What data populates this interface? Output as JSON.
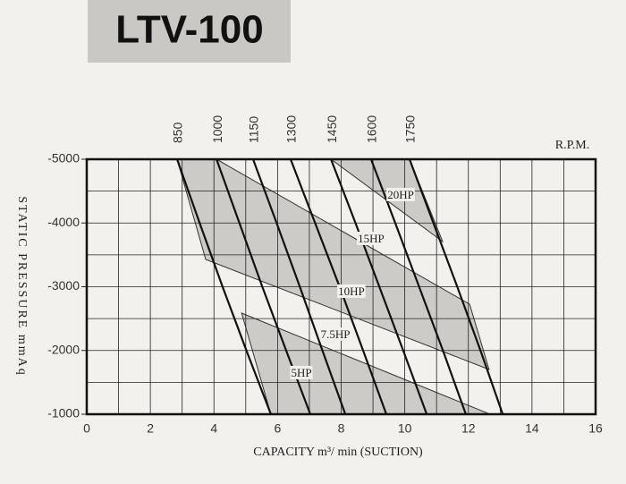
{
  "chart_data": {
    "type": "performance",
    "title": "LTV-100",
    "xlabel": "CAPACITY m³/ min (SUCTION)",
    "ylabel": "STATIC PRESSURE mmAq",
    "series_label": "R.P.M.",
    "xlim": [
      0,
      16
    ],
    "xticks": [
      0,
      2,
      4,
      6,
      8,
      10,
      12,
      14,
      16
    ],
    "ylim": [
      -1000,
      -5000
    ],
    "yticks": [
      -5000,
      -4000,
      -3000,
      -2000,
      -1000
    ],
    "grid": true,
    "minor_grid": true,
    "pressure": [
      -5000,
      -4000,
      -3000,
      -2000,
      -1000
    ],
    "series": [
      {
        "name": "850",
        "color": "#111111",
        "values": [
          2.84,
          3.55,
          4.27,
          5.02,
          5.79
        ]
      },
      {
        "name": "1000",
        "color": "#111111",
        "values": [
          4.08,
          4.8,
          5.52,
          6.27,
          7.03
        ]
      },
      {
        "name": "1150",
        "color": "#111111",
        "values": [
          5.23,
          5.97,
          6.7,
          7.41,
          8.13
        ]
      },
      {
        "name": "1300",
        "color": "#111111",
        "values": [
          6.41,
          7.18,
          7.95,
          8.69,
          9.42
        ]
      },
      {
        "name": "1450",
        "color": "#111111",
        "values": [
          7.68,
          8.45,
          9.2,
          9.95,
          10.69
        ]
      },
      {
        "name": "1600",
        "color": "#111111",
        "values": [
          8.94,
          9.7,
          10.45,
          11.2,
          11.92
        ]
      },
      {
        "name": "1750",
        "color": "#111111",
        "values": [
          10.15,
          10.9,
          11.65,
          12.38,
          13.08
        ]
      }
    ],
    "bands": [
      {
        "name": "10HP",
        "color": "#cdcbc8",
        "x": [
          2.84,
          4.08,
          12.04,
          12.65,
          3.74
        ],
        "y": [
          -5000,
          -5000,
          -2726,
          -1702,
          -3428
        ]
      },
      {
        "name": "20HP",
        "color": "#cdcbc8",
        "x": [
          7.68,
          10.15,
          11.19
        ],
        "y": [
          -5000,
          -5000,
          -3709
        ]
      },
      {
        "name": "5HP",
        "color": "#cdcbc8",
        "x": [
          4.87,
          12.68,
          5.79
        ],
        "y": [
          -2586,
          -1000,
          -1000
        ]
      }
    ],
    "annotations": [
      {
        "text": "5HP",
        "x": 6.75,
        "y": -1632
      },
      {
        "text": "7.5HP",
        "x": 7.82,
        "y": -2235
      },
      {
        "text": "10HP",
        "x": 8.32,
        "y": -2909
      },
      {
        "text": "15HP",
        "x": 8.94,
        "y": -3737
      },
      {
        "text": "20HP",
        "x": 9.87,
        "y": -4425
      }
    ]
  }
}
